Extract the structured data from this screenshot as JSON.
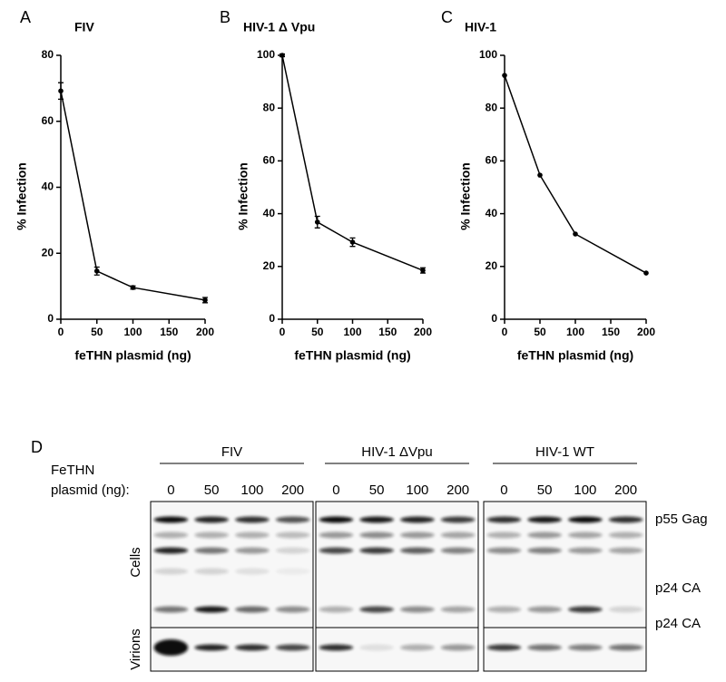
{
  "chart_data": [
    {
      "type": "line",
      "label": "A",
      "title": "FIV",
      "x_label": "feTHN plasmid (ng)",
      "y_label": "% Infection",
      "x": [
        0,
        50,
        100,
        200
      ],
      "values": [
        69.2,
        14.6,
        9.6,
        5.8
      ],
      "errors": [
        2.5,
        1.2,
        0.5,
        0.8
      ],
      "xlim": [
        0,
        200
      ],
      "xticks": [
        0,
        50,
        100,
        150,
        200
      ],
      "ylim": [
        0,
        80
      ],
      "yticks": [
        0,
        20,
        40,
        60,
        80
      ],
      "color": "#000000"
    },
    {
      "type": "line",
      "label": "B",
      "title": "HIV-1 Δ Vpu",
      "x_label": "feTHN plasmid (ng)",
      "y_label": "% Infection",
      "x": [
        0,
        50,
        100,
        200
      ],
      "values": [
        100,
        36.8,
        29.2,
        18.5
      ],
      "errors": [
        0.5,
        2.2,
        1.6,
        1.0
      ],
      "xlim": [
        0,
        200
      ],
      "xticks": [
        0,
        50,
        100,
        150,
        200
      ],
      "ylim": [
        0,
        100
      ],
      "yticks": [
        0,
        20,
        40,
        60,
        80,
        100
      ],
      "color": "#000000"
    },
    {
      "type": "line",
      "label": "C",
      "title": "HIV-1",
      "x_label": "feTHN plasmid (ng)",
      "y_label": "% Infection",
      "x": [
        0,
        50,
        100,
        200
      ],
      "values": [
        92.4,
        54.6,
        32.3,
        17.5
      ],
      "xlim": [
        0,
        200
      ],
      "xticks": [
        0,
        50,
        100,
        150,
        200
      ],
      "ylim": [
        0,
        100
      ],
      "yticks": [
        0,
        20,
        40,
        60,
        80,
        100
      ],
      "color": "#000000"
    }
  ],
  "blot": {
    "label": "D",
    "dose_header": [
      "FeTHN",
      "plasmid (ng):"
    ],
    "groups": [
      {
        "name": "FIV",
        "doses": [
          "0",
          "50",
          "100",
          "200"
        ]
      },
      {
        "name": "HIV-1 ΔVpu",
        "doses": [
          "0",
          "50",
          "100",
          "200"
        ]
      },
      {
        "name": "HIV-1 WT",
        "doses": [
          "0",
          "50",
          "100",
          "200"
        ]
      }
    ],
    "rows": [
      "Cells",
      "Virions"
    ],
    "bands": [
      "p55 Gag",
      "p24 CA",
      "p24 CA"
    ]
  }
}
